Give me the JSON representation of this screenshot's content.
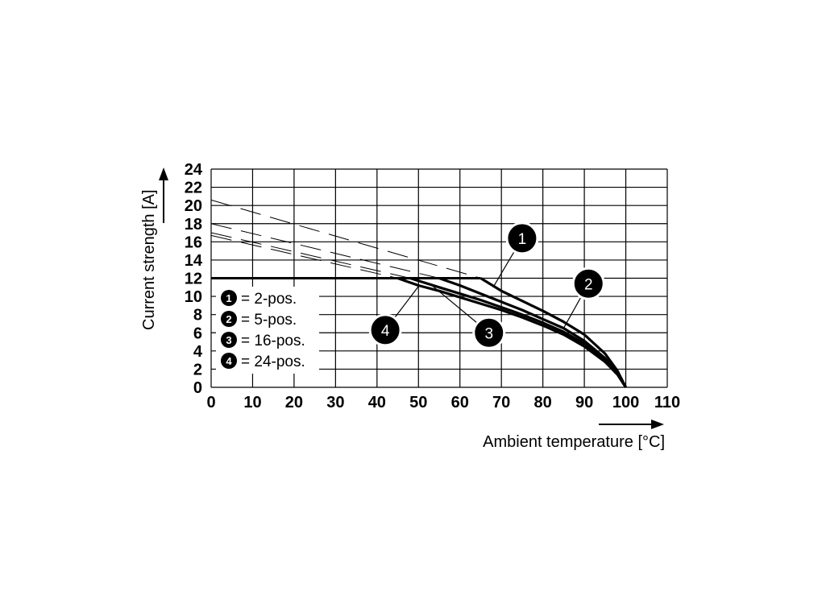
{
  "chart_data": {
    "type": "line",
    "xlabel": "Ambient temperature [°C]",
    "ylabel": "Current strength [A]",
    "xlim": [
      0,
      110
    ],
    "ylim": [
      0,
      24
    ],
    "x_ticks": [
      0,
      10,
      20,
      30,
      40,
      50,
      60,
      70,
      80,
      90,
      100,
      110
    ],
    "y_ticks": [
      0,
      2,
      4,
      6,
      8,
      10,
      12,
      14,
      16,
      18,
      20,
      22,
      24
    ],
    "grid": true,
    "plateau": {
      "value": 12,
      "x": [
        0,
        65
      ]
    },
    "series": [
      {
        "marker": "1",
        "name": "2-pos.",
        "extrapolated": [
          [
            0,
            20.6
          ],
          [
            65,
            12
          ]
        ],
        "values": [
          [
            65,
            12
          ],
          [
            70,
            10.6
          ],
          [
            75,
            9.5
          ],
          [
            80,
            8.4
          ],
          [
            85,
            7.2
          ],
          [
            90,
            5.8
          ],
          [
            95,
            3.7
          ],
          [
            98,
            1.8
          ],
          [
            100,
            0
          ]
        ]
      },
      {
        "marker": "2",
        "name": "5-pos.",
        "extrapolated": [
          [
            0,
            18.0
          ],
          [
            55,
            12
          ]
        ],
        "values": [
          [
            55,
            12
          ],
          [
            60,
            11.2
          ],
          [
            65,
            10.3
          ],
          [
            70,
            9.4
          ],
          [
            75,
            8.5
          ],
          [
            80,
            7.5
          ],
          [
            85,
            6.5
          ],
          [
            90,
            5.1
          ],
          [
            95,
            3.2
          ],
          [
            98,
            1.6
          ],
          [
            100,
            0
          ]
        ]
      },
      {
        "marker": "3",
        "name": "16-pos.",
        "extrapolated": [
          [
            0,
            17.0
          ],
          [
            48,
            12
          ]
        ],
        "values": [
          [
            48,
            12
          ],
          [
            55,
            11.0
          ],
          [
            60,
            10.3
          ],
          [
            65,
            9.6
          ],
          [
            70,
            8.8
          ],
          [
            75,
            8.0
          ],
          [
            80,
            7.1
          ],
          [
            85,
            6.1
          ],
          [
            90,
            4.8
          ],
          [
            95,
            3.0
          ],
          [
            98,
            1.5
          ],
          [
            100,
            0
          ]
        ]
      },
      {
        "marker": "4",
        "name": "24-pos.",
        "extrapolated": [
          [
            0,
            16.7
          ],
          [
            45,
            12
          ]
        ],
        "values": [
          [
            45,
            12
          ],
          [
            50,
            11.2
          ],
          [
            55,
            10.6
          ],
          [
            60,
            9.9
          ],
          [
            65,
            9.2
          ],
          [
            70,
            8.5
          ],
          [
            75,
            7.7
          ],
          [
            80,
            6.8
          ],
          [
            85,
            5.8
          ],
          [
            90,
            4.5
          ],
          [
            95,
            2.8
          ],
          [
            98,
            1.4
          ],
          [
            100,
            0
          ]
        ]
      }
    ],
    "legend": {
      "placement": "bottom-left",
      "entries": [
        {
          "marker": "1",
          "text": "= 2-pos."
        },
        {
          "marker": "2",
          "text": "= 5-pos."
        },
        {
          "marker": "3",
          "text": "= 16-pos."
        },
        {
          "marker": "4",
          "text": "= 24-pos."
        }
      ]
    },
    "callouts": [
      {
        "marker": "1",
        "series_index": 0,
        "at": [
          68,
          11.0
        ],
        "label_at": [
          75,
          16.4
        ]
      },
      {
        "marker": "2",
        "series_index": 1,
        "at": [
          85,
          6.5
        ],
        "label_at": [
          91,
          11.4
        ]
      },
      {
        "marker": "3",
        "series_index": 2,
        "at": [
          53,
          11.3
        ],
        "label_at": [
          67,
          6.0
        ]
      },
      {
        "marker": "4",
        "series_index": 3,
        "at": [
          50,
          11.1
        ],
        "label_at": [
          42,
          6.3
        ]
      }
    ]
  }
}
